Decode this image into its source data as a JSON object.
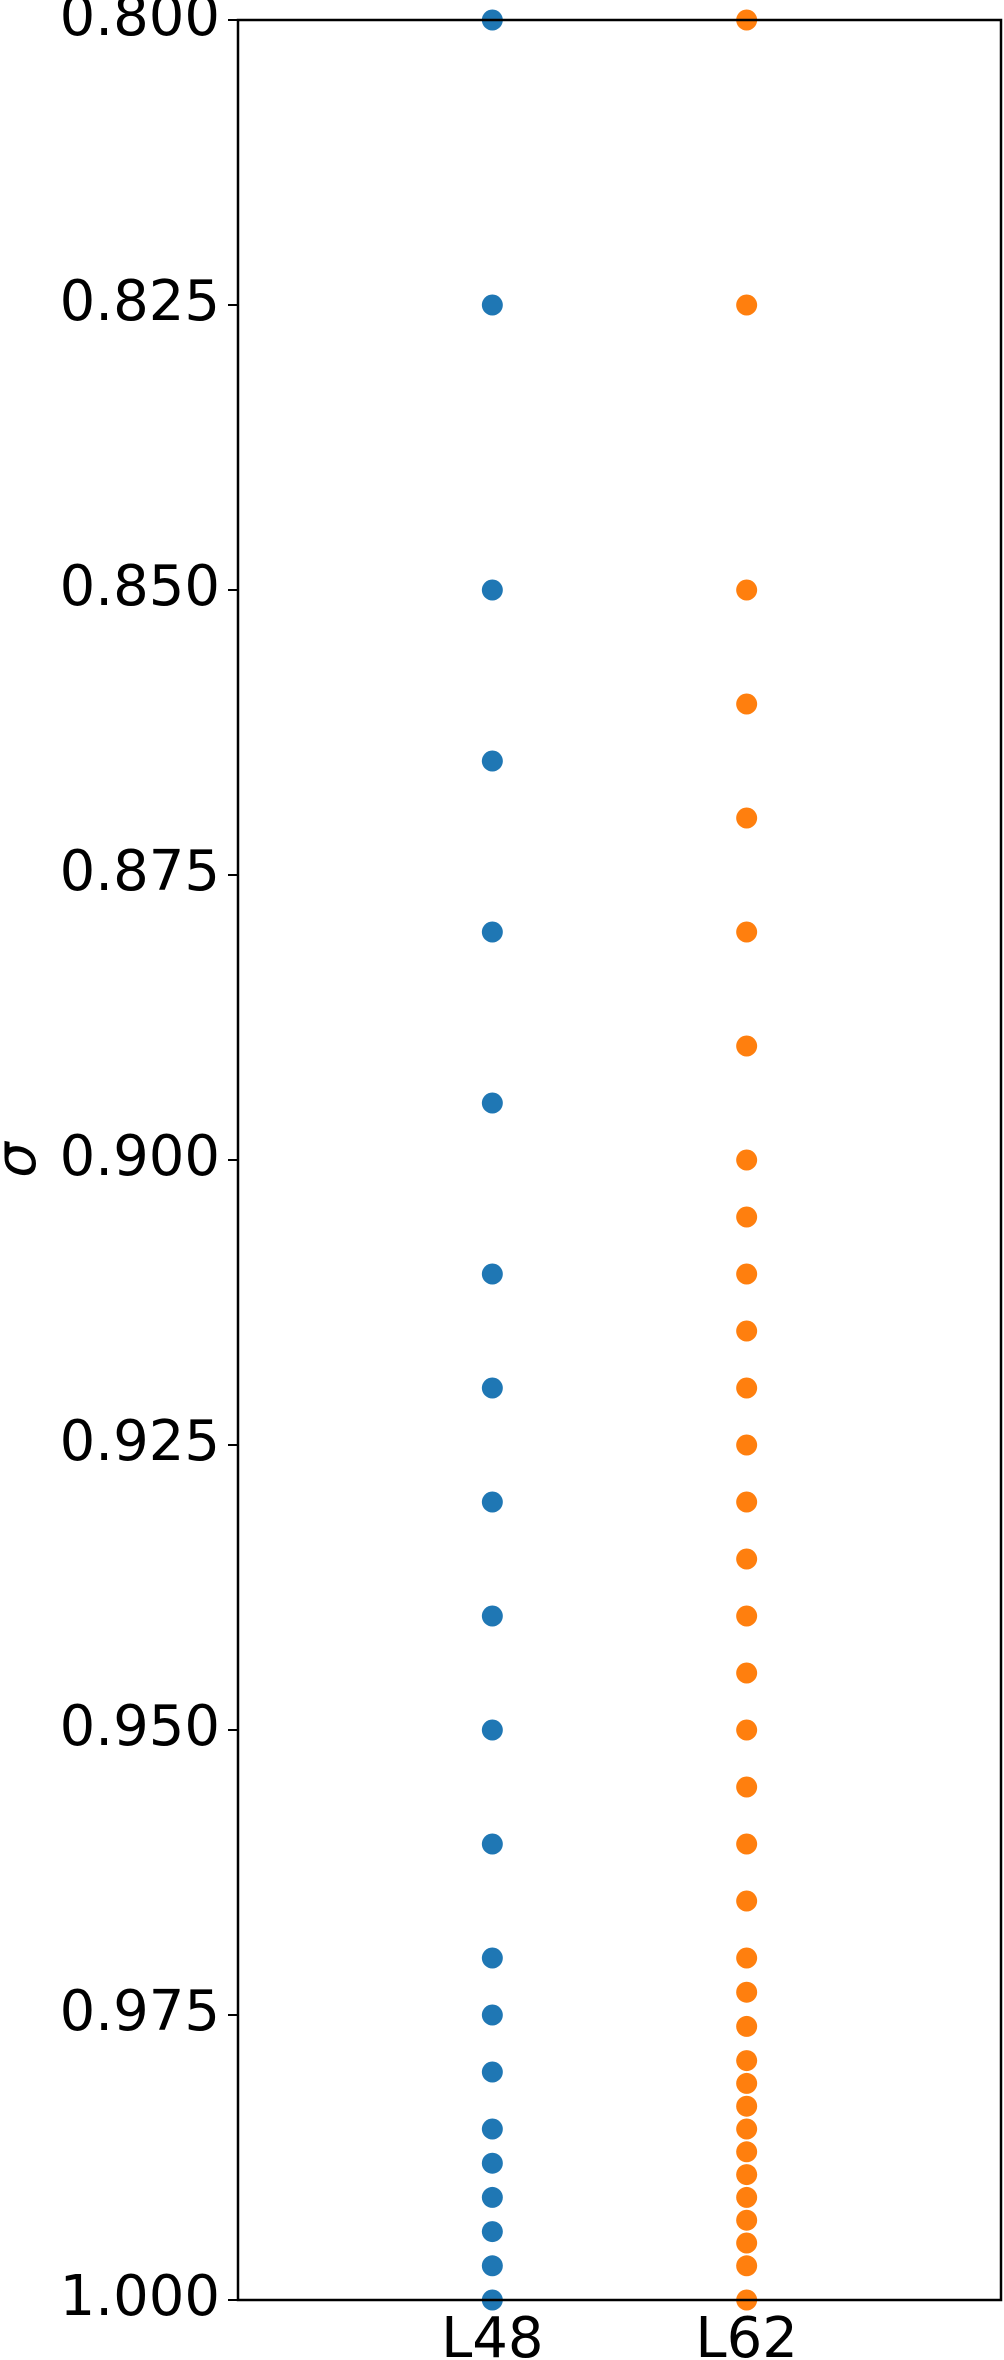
{
  "chart_data": {
    "type": "scatter",
    "ylabel": "σ",
    "categories": [
      "L48",
      "L62"
    ],
    "series": [
      {
        "color": "#1f77b4",
        "values": [
          0.8,
          0.825,
          0.85,
          0.865,
          0.88,
          0.895,
          0.91,
          0.92,
          0.93,
          0.94,
          0.95,
          0.96,
          0.97,
          0.975,
          0.98,
          0.985,
          0.988,
          0.991,
          0.994,
          0.997,
          1.0
        ]
      },
      {
        "color": "#ff7f0e",
        "values": [
          0.8,
          0.825,
          0.85,
          0.86,
          0.87,
          0.88,
          0.89,
          0.9,
          0.905,
          0.91,
          0.915,
          0.92,
          0.925,
          0.93,
          0.935,
          0.94,
          0.945,
          0.95,
          0.955,
          0.96,
          0.965,
          0.97,
          0.973,
          0.976,
          0.979,
          0.981,
          0.983,
          0.985,
          0.987,
          0.989,
          0.991,
          0.993,
          0.995,
          0.997,
          1.0
        ]
      }
    ],
    "ylim": [
      0.8,
      1.0
    ],
    "inverted_y": true,
    "yticks": [
      {
        "value": 0.8,
        "label": "0.800"
      },
      {
        "value": 0.825,
        "label": "0.825"
      },
      {
        "value": 0.85,
        "label": "0.850"
      },
      {
        "value": 0.875,
        "label": "0.875"
      },
      {
        "value": 0.9,
        "label": "0.900"
      },
      {
        "value": 0.925,
        "label": "0.925"
      },
      {
        "value": 0.95,
        "label": "0.950"
      },
      {
        "value": 0.975,
        "label": "0.975"
      },
      {
        "value": 1.0,
        "label": "1.000"
      }
    ],
    "grid": false
  }
}
